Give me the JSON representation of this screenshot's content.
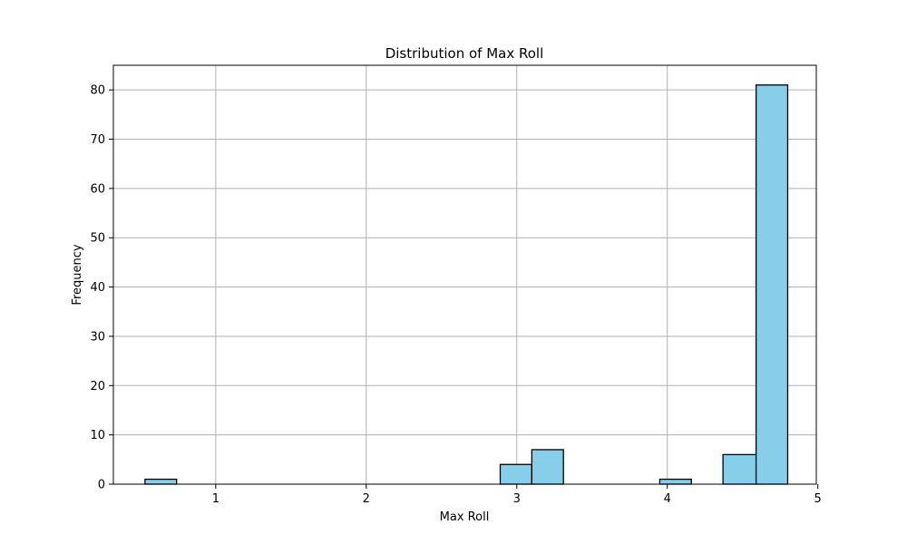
{
  "chart_data": {
    "type": "bar",
    "title": "Distribution of Max Roll",
    "xlabel": "Max Roll",
    "ylabel": "Frequency",
    "xlim": [
      0.32,
      4.99
    ],
    "ylim": [
      0,
      85
    ],
    "xticks": [
      1,
      2,
      3,
      4,
      5
    ],
    "yticks": [
      0,
      10,
      20,
      30,
      40,
      50,
      60,
      70,
      80
    ],
    "grid": true,
    "bar_color": "#87ceeb",
    "edge_color": "#000000",
    "bins": [
      {
        "x0": 0.53,
        "x1": 0.74,
        "count": 1
      },
      {
        "x0": 2.89,
        "x1": 3.1,
        "count": 4
      },
      {
        "x0": 3.1,
        "x1": 3.31,
        "count": 7
      },
      {
        "x0": 3.95,
        "x1": 4.16,
        "count": 1
      },
      {
        "x0": 4.37,
        "x1": 4.59,
        "count": 6
      },
      {
        "x0": 4.59,
        "x1": 4.8,
        "count": 81
      }
    ]
  }
}
